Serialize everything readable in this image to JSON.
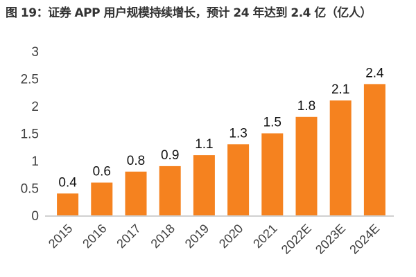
{
  "chart_data": {
    "type": "bar",
    "title": "图 19：证券 APP 用户规模持续增长，预计 24 年达到 2.4 亿（亿人）",
    "categories": [
      "2015",
      "2016",
      "2017",
      "2018",
      "2019",
      "2020",
      "2021",
      "2022E",
      "2023E",
      "2024E"
    ],
    "values": [
      0.4,
      0.6,
      0.8,
      0.9,
      1.1,
      1.3,
      1.5,
      1.8,
      2.1,
      2.4
    ],
    "data_labels": [
      "0.4",
      "0.6",
      "0.8",
      "0.9",
      "1.1",
      "1.3",
      "1.5",
      "1.8",
      "2.1",
      "2.4"
    ],
    "xlabel": "",
    "ylabel": "",
    "ylim": [
      0,
      3
    ],
    "yticks": [
      "0",
      "0.5",
      "1",
      "1.5",
      "2",
      "2.5",
      "3"
    ],
    "grid": false,
    "legend": "none",
    "bar_color": "#F5821F"
  }
}
